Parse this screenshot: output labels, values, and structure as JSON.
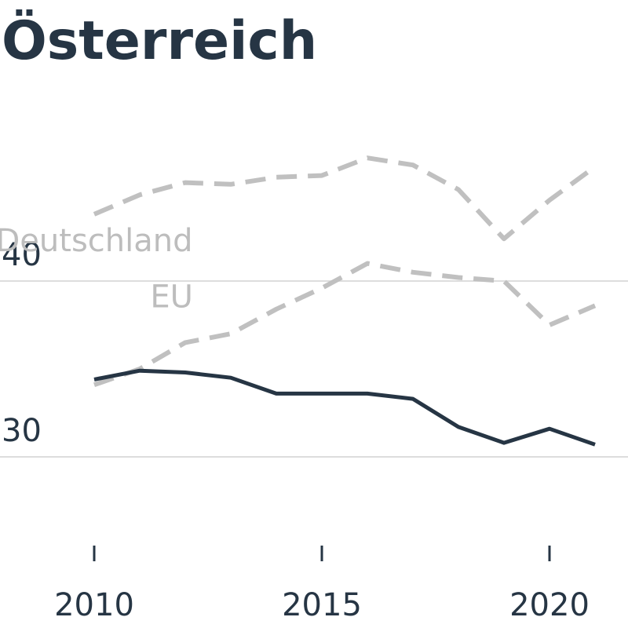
{
  "chart_data": {
    "type": "line",
    "title": "Österreich",
    "xlabel": "",
    "ylabel": "",
    "xlim": [
      2010,
      2021
    ],
    "ylim": [
      30,
      40
    ],
    "yticks": [
      30,
      40
    ],
    "xticks": [
      2010,
      2015,
      2020
    ],
    "grid": "horizontal",
    "legend": "inline labels",
    "x": [
      2010,
      2011,
      2012,
      2013,
      2014,
      2015,
      2016,
      2017,
      2018,
      2019,
      2020,
      2021
    ],
    "series": [
      {
        "name": "Deutschland",
        "style": "dashed",
        "color": "#c0c0c0",
        "label_at": [
          2010,
          41.7
        ],
        "values": [
          43.8,
          44.9,
          45.6,
          45.5,
          45.9,
          46.0,
          47.0,
          46.6,
          45.2,
          42.4,
          44.6,
          46.5
        ]
      },
      {
        "name": "EU",
        "style": "dashed",
        "color": "#c0c0c0",
        "label_at": [
          2011.7,
          38.5
        ],
        "values": [
          34.1,
          35.0,
          36.5,
          37.0,
          38.4,
          39.6,
          41.0,
          40.5,
          40.2,
          40.0,
          37.5,
          38.6
        ]
      },
      {
        "name": "Österreich",
        "style": "solid",
        "color": "#263544",
        "values": [
          34.4,
          34.9,
          34.8,
          34.5,
          33.6,
          33.6,
          33.6,
          33.3,
          31.7,
          30.8,
          31.6,
          30.7
        ]
      }
    ]
  }
}
